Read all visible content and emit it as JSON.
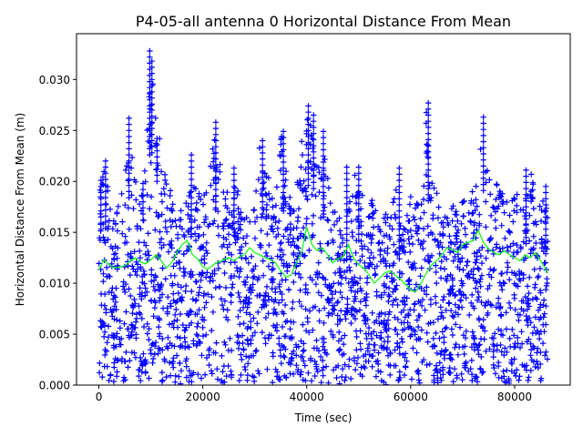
{
  "chart_data": {
    "type": "scatter",
    "title": "P4-05-all antenna 0 Horizontal Distance From Mean",
    "xlabel": "Time (sec)",
    "ylabel": "Horizontal Distance From Mean (m)",
    "xlim": [
      -4300,
      90700
    ],
    "ylim": [
      0,
      0.0345
    ],
    "xticks": [
      0,
      20000,
      40000,
      60000,
      80000
    ],
    "xtick_labels": [
      "0",
      "20000",
      "40000",
      "60000",
      "80000"
    ],
    "yticks": [
      0.0,
      0.005,
      0.01,
      0.015,
      0.02,
      0.025,
      0.03
    ],
    "ytick_labels": [
      "0.000",
      "0.005",
      "0.010",
      "0.015",
      "0.020",
      "0.025",
      "0.030"
    ],
    "grid": false,
    "x_range": [
      0,
      86400
    ],
    "series": [
      {
        "marker": "plus",
        "color": "#0000ff",
        "envelope": {
          "x": [
            0,
            1000,
            2000,
            3000,
            4000,
            5000,
            6000,
            7000,
            8000,
            9000,
            10000,
            11000,
            12000,
            13000,
            14000,
            15000,
            16000,
            17000,
            18000,
            19000,
            20000,
            21000,
            22000,
            23000,
            24000,
            25000,
            26000,
            27000,
            28000,
            29000,
            30000,
            31000,
            32000,
            33000,
            34000,
            35000,
            36000,
            37000,
            38000,
            39000,
            40000,
            41000,
            42000,
            43000,
            44000,
            45000,
            46000,
            47000,
            48000,
            49000,
            50000,
            51000,
            52000,
            53000,
            54000,
            55000,
            56000,
            57000,
            58000,
            59000,
            60000,
            61000,
            62000,
            63000,
            64000,
            65000,
            66000,
            67000,
            68000,
            69000,
            70000,
            71000,
            72000,
            73000,
            74000,
            75000,
            76000,
            77000,
            78000,
            79000,
            80000,
            81000,
            82000,
            83000,
            84000,
            85000,
            86400
          ],
          "upper": [
            0.02,
            0.022,
            0.019,
            0.0165,
            0.0185,
            0.0205,
            0.026,
            0.02,
            0.0195,
            0.024,
            0.0325,
            0.028,
            0.0235,
            0.021,
            0.019,
            0.017,
            0.0175,
            0.0185,
            0.0205,
            0.019,
            0.0185,
            0.0195,
            0.0255,
            0.0225,
            0.02,
            0.0195,
            0.02,
            0.019,
            0.017,
            0.0165,
            0.018,
            0.024,
            0.0215,
            0.02,
            0.0195,
            0.025,
            0.022,
            0.018,
            0.02,
            0.024,
            0.0272,
            0.0265,
            0.025,
            0.023,
            0.0215,
            0.019,
            0.017,
            0.016,
            0.0175,
            0.0215,
            0.0195,
            0.0185,
            0.0175,
            0.019,
            0.018,
            0.017,
            0.0165,
            0.02,
            0.017,
            0.016,
            0.019,
            0.02,
            0.021,
            0.0275,
            0.02,
            0.019,
            0.0165,
            0.0165,
            0.0175,
            0.019,
            0.0185,
            0.0175,
            0.0195,
            0.021,
            0.0262,
            0.0235,
            0.0205,
            0.0195,
            0.0185,
            0.0175,
            0.019,
            0.0185,
            0.018,
            0.021,
            0.0195,
            0.019,
            0.017
          ],
          "lower": [
            0.001,
            0.0,
            0.0003,
            0.0,
            0.0005,
            0.0,
            0.0002,
            0.0008,
            0.0,
            0.0004,
            0.0,
            0.001,
            0.0003,
            0.0,
            0.0006,
            0.0001,
            0.0,
            0.0004,
            0.0002,
            0.0,
            0.0007,
            0.0,
            0.0003,
            0.0001,
            0.0,
            0.0005,
            0.0,
            0.0002,
            0.0,
            0.0004,
            0.0,
            0.0001,
            0.0006,
            0.0,
            0.0003,
            0.0,
            0.0002,
            0.0,
            0.0005,
            0.0,
            0.0001,
            0.0004,
            0.0,
            0.0002,
            0.0,
            0.0006,
            0.0,
            0.0003,
            0.0,
            0.0001,
            0.0004,
            0.0,
            0.0002,
            0.0,
            0.0005,
            0.0,
            0.0001,
            0.0003,
            0.0,
            0.0002,
            0.0,
            0.0004,
            0.0,
            0.0001,
            0.0005,
            0.0,
            0.0002,
            0.0,
            0.0003,
            0.0,
            0.0001,
            0.0004,
            0.0,
            0.0002,
            0.0,
            0.0005,
            0.0,
            0.0001,
            0.0003,
            0.0,
            0.0002,
            0.0,
            0.0004,
            0.0,
            0.0001,
            0.0003,
            0.001
          ]
        },
        "spikes": [
          {
            "x": 400,
            "y": 0.0201
          },
          {
            "x": 1300,
            "y": 0.022
          },
          {
            "x": 5800,
            "y": 0.0262
          },
          {
            "x": 8500,
            "y": 0.0198
          },
          {
            "x": 9800,
            "y": 0.0328
          },
          {
            "x": 10200,
            "y": 0.0318
          },
          {
            "x": 11200,
            "y": 0.0242
          },
          {
            "x": 17800,
            "y": 0.0226
          },
          {
            "x": 22500,
            "y": 0.0258
          },
          {
            "x": 26000,
            "y": 0.0213
          },
          {
            "x": 31500,
            "y": 0.024
          },
          {
            "x": 35500,
            "y": 0.0249
          },
          {
            "x": 40300,
            "y": 0.0274
          },
          {
            "x": 41300,
            "y": 0.0265
          },
          {
            "x": 43200,
            "y": 0.0249
          },
          {
            "x": 47700,
            "y": 0.0214
          },
          {
            "x": 50000,
            "y": 0.0214
          },
          {
            "x": 57800,
            "y": 0.0213
          },
          {
            "x": 63400,
            "y": 0.0277
          },
          {
            "x": 74000,
            "y": 0.0263
          },
          {
            "x": 82200,
            "y": 0.0211
          },
          {
            "x": 86000,
            "y": 0.0195
          }
        ]
      },
      {
        "marker": "line",
        "color": "#00ff00",
        "x": [
          0,
          1000,
          2000,
          3000,
          4000,
          5000,
          6000,
          7000,
          8000,
          9000,
          10000,
          11000,
          12000,
          13000,
          14000,
          15000,
          16000,
          17000,
          18000,
          19000,
          20000,
          21000,
          22000,
          23000,
          24000,
          25000,
          26000,
          27000,
          28000,
          29000,
          30000,
          31000,
          32000,
          33000,
          34000,
          35000,
          36000,
          37000,
          38000,
          39000,
          40000,
          41000,
          42000,
          43000,
          44000,
          45000,
          46000,
          47000,
          48000,
          49000,
          50000,
          51000,
          52000,
          53000,
          54000,
          55000,
          56000,
          57000,
          58000,
          59000,
          60000,
          61000,
          62000,
          63000,
          64000,
          65000,
          66000,
          67000,
          68000,
          69000,
          70000,
          71000,
          72000,
          73000,
          74000,
          75000,
          76000,
          77000,
          78000,
          79000,
          80000,
          81000,
          82000,
          83000,
          84000,
          85000,
          86400
        ],
        "y": [
          0.0113,
          0.0123,
          0.0118,
          0.0115,
          0.0116,
          0.0117,
          0.0122,
          0.0125,
          0.0121,
          0.0119,
          0.0123,
          0.0128,
          0.0122,
          0.0115,
          0.012,
          0.013,
          0.0138,
          0.0142,
          0.0128,
          0.0124,
          0.0116,
          0.0114,
          0.0118,
          0.0121,
          0.0123,
          0.0125,
          0.0122,
          0.0126,
          0.0128,
          0.0135,
          0.013,
          0.0128,
          0.0125,
          0.0123,
          0.012,
          0.0112,
          0.0106,
          0.0108,
          0.012,
          0.013,
          0.0155,
          0.0138,
          0.0132,
          0.0135,
          0.0128,
          0.012,
          0.0124,
          0.0126,
          0.0138,
          0.0125,
          0.0118,
          0.0115,
          0.0108,
          0.01,
          0.0105,
          0.011,
          0.0112,
          0.0108,
          0.0104,
          0.0099,
          0.0093,
          0.0092,
          0.01,
          0.011,
          0.0118,
          0.0122,
          0.0128,
          0.0135,
          0.0133,
          0.013,
          0.0138,
          0.014,
          0.0142,
          0.0152,
          0.014,
          0.0134,
          0.013,
          0.0128,
          0.0132,
          0.0128,
          0.0125,
          0.0122,
          0.0128,
          0.0125,
          0.013,
          0.0122,
          0.011
        ]
      }
    ]
  }
}
